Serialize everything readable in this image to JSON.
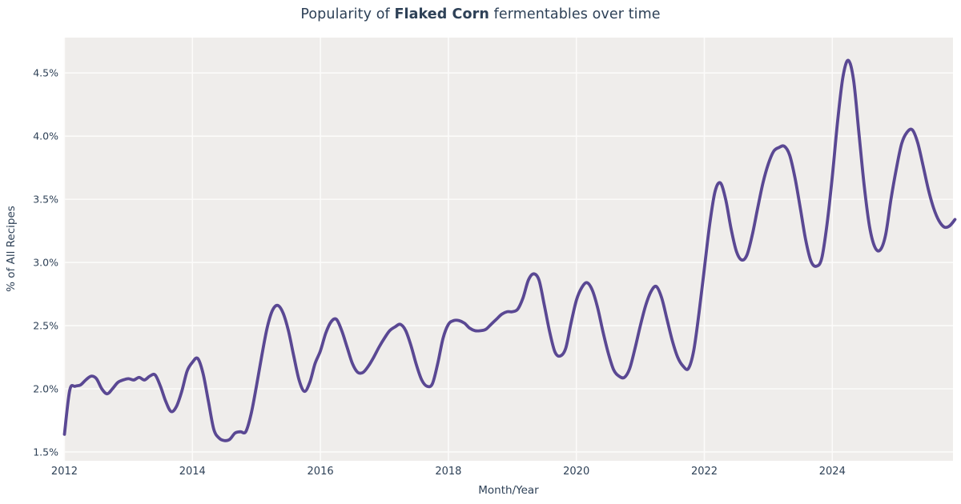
{
  "title": {
    "prefix": "Popularity of ",
    "highlight": "Flaked Corn",
    "suffix": " fermentables over time"
  },
  "colors": {
    "text": "#2e4157",
    "plot_background": "#efedeb",
    "gridline": "#fcfbfa",
    "line": "#5a4893",
    "page_background": "#ffffff"
  },
  "chart_data": {
    "type": "line",
    "title": "Popularity of Flaked Corn fermentables over time",
    "xlabel": "Month/Year",
    "ylabel": "% of All Recipes",
    "legend": "none",
    "grid": true,
    "x_range": [
      2011.994,
      2025.886
    ],
    "y_range": [
      1.43,
      4.78
    ],
    "x_ticks": [
      {
        "value": 2012,
        "label": "2012"
      },
      {
        "value": 2014,
        "label": "2014"
      },
      {
        "value": 2016,
        "label": "2016"
      },
      {
        "value": 2018,
        "label": "2018"
      },
      {
        "value": 2020,
        "label": "2020"
      },
      {
        "value": 2022,
        "label": "2022"
      },
      {
        "value": 2024,
        "label": "2024"
      }
    ],
    "y_ticks": [
      {
        "value": 1.5,
        "label": "1.5%"
      },
      {
        "value": 2.0,
        "label": "2.0%"
      },
      {
        "value": 2.5,
        "label": "2.5%"
      },
      {
        "value": 3.0,
        "label": "3.0%"
      },
      {
        "value": 3.5,
        "label": "3.5%"
      },
      {
        "value": 4.0,
        "label": "4.0%"
      },
      {
        "value": 4.5,
        "label": "4.5%"
      }
    ],
    "series": [
      {
        "name": "Flaked Corn",
        "color": "#5a4893",
        "frequency": "monthly",
        "start_year": 2012,
        "start_month": 1,
        "end_year": 2025,
        "end_month": 12,
        "unit": "% of all recipes",
        "values": [
          1.64,
          1.99,
          2.02,
          2.03,
          2.07,
          2.1,
          2.08,
          2.0,
          1.96,
          2.0,
          2.05,
          2.07,
          2.08,
          2.07,
          2.09,
          2.07,
          2.1,
          2.11,
          2.02,
          1.9,
          1.82,
          1.86,
          1.98,
          2.14,
          2.21,
          2.24,
          2.12,
          1.9,
          1.68,
          1.61,
          1.59,
          1.6,
          1.65,
          1.66,
          1.66,
          1.8,
          2.02,
          2.26,
          2.48,
          2.62,
          2.66,
          2.6,
          2.46,
          2.26,
          2.07,
          1.98,
          2.05,
          2.2,
          2.3,
          2.44,
          2.53,
          2.55,
          2.46,
          2.33,
          2.2,
          2.13,
          2.13,
          2.18,
          2.25,
          2.33,
          2.4,
          2.46,
          2.49,
          2.51,
          2.46,
          2.34,
          2.19,
          2.07,
          2.02,
          2.04,
          2.2,
          2.4,
          2.51,
          2.54,
          2.54,
          2.52,
          2.48,
          2.46,
          2.46,
          2.47,
          2.51,
          2.55,
          2.59,
          2.61,
          2.61,
          2.63,
          2.72,
          2.86,
          2.91,
          2.86,
          2.66,
          2.45,
          2.29,
          2.26,
          2.32,
          2.52,
          2.7,
          2.8,
          2.84,
          2.78,
          2.64,
          2.45,
          2.28,
          2.15,
          2.1,
          2.09,
          2.16,
          2.32,
          2.5,
          2.66,
          2.77,
          2.81,
          2.72,
          2.55,
          2.38,
          2.25,
          2.18,
          2.16,
          2.3,
          2.6,
          2.95,
          3.3,
          3.56,
          3.63,
          3.5,
          3.27,
          3.09,
          3.02,
          3.06,
          3.22,
          3.43,
          3.63,
          3.78,
          3.88,
          3.91,
          3.92,
          3.85,
          3.67,
          3.43,
          3.18,
          3.01,
          2.97,
          3.03,
          3.3,
          3.68,
          4.12,
          4.47,
          4.6,
          4.44,
          4.02,
          3.6,
          3.28,
          3.12,
          3.1,
          3.22,
          3.5,
          3.74,
          3.94,
          4.03,
          4.05,
          3.95,
          3.77,
          3.58,
          3.43,
          3.33,
          3.28,
          3.29,
          3.34
        ]
      }
    ]
  }
}
